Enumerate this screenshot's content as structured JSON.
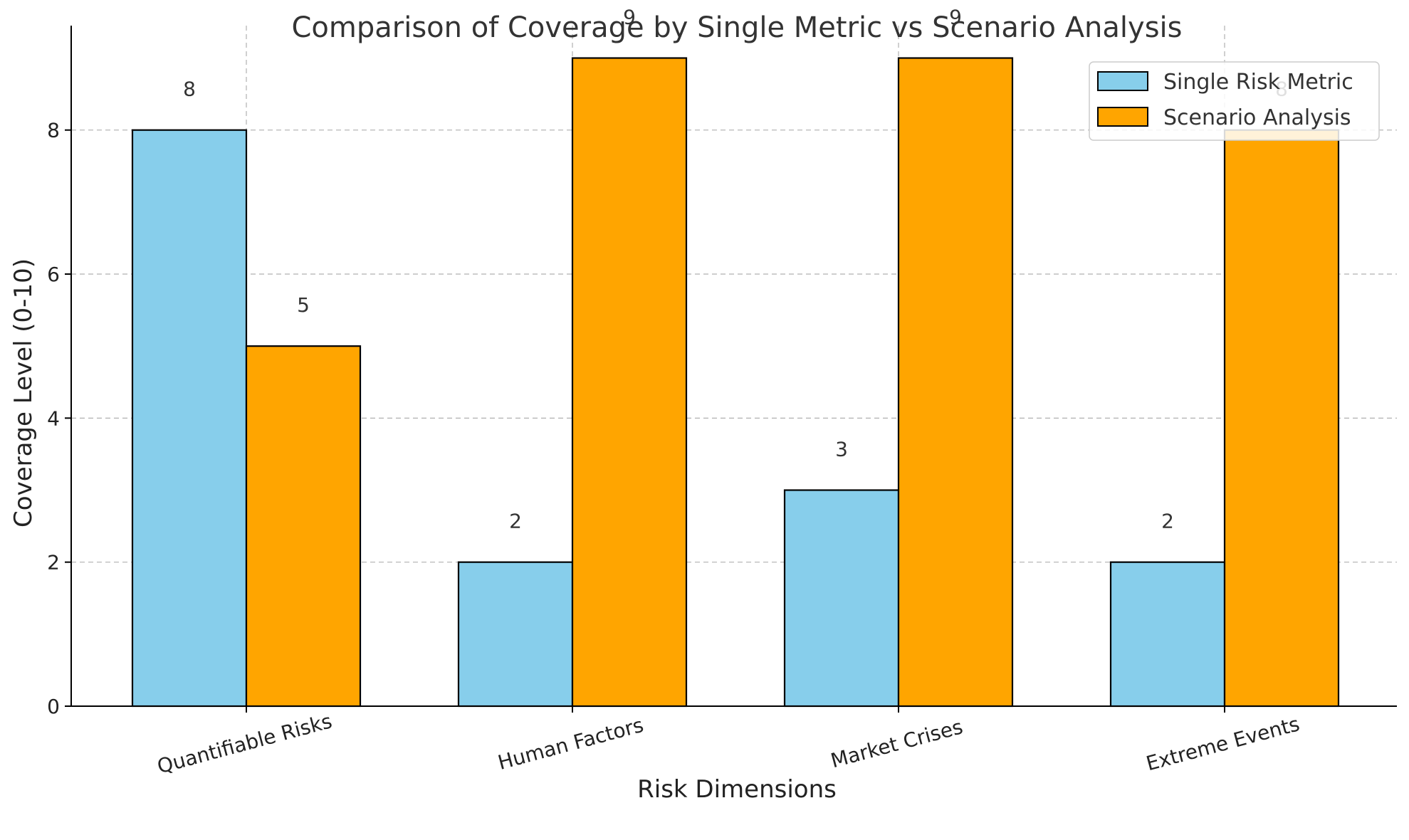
{
  "chart_data": {
    "type": "bar",
    "title": "Comparison of Coverage by Single Metric vs Scenario Analysis",
    "xlabel": "Risk Dimensions",
    "ylabel": "Coverage Level (0-10)",
    "categories": [
      "Quantifiable Risks",
      "Human Factors",
      "Market Crises",
      "Extreme Events"
    ],
    "series": [
      {
        "name": "Single Risk Metric",
        "values": [
          8,
          2,
          3,
          2
        ],
        "color": "#87CEEB"
      },
      {
        "name": "Scenario Analysis",
        "values": [
          5,
          9,
          9,
          8
        ],
        "color": "#FFA500"
      }
    ],
    "ylim": [
      0,
      9.45
    ],
    "yticks": [
      0,
      2,
      4,
      6,
      8
    ],
    "grid": true,
    "legend_position": "top-right",
    "tick_rotation_deg": -15
  }
}
